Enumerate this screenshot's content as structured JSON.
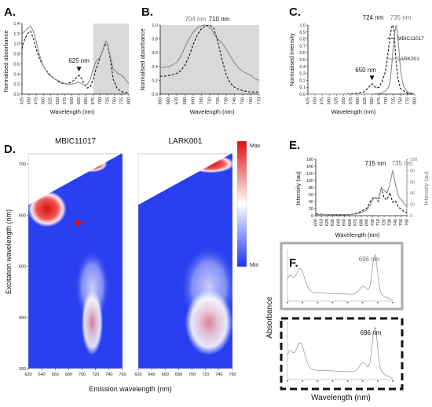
{
  "figure": {
    "panel_labels": [
      "A.",
      "B.",
      "C.",
      "D.",
      "E.",
      "F."
    ]
  },
  "chart_data": [
    {
      "panel": "A.",
      "type": "line",
      "xlabel": "Wavelength (nm)",
      "ylabel": "Normalised absorbance",
      "xlim": [
        425,
        800
      ],
      "ylim": [
        0.0,
        1.4
      ],
      "xticks": [
        425,
        450,
        475,
        500,
        525,
        550,
        575,
        600,
        625,
        650,
        675,
        700,
        725,
        750,
        775,
        800
      ],
      "yticks": [
        0.0,
        0.2,
        0.4,
        0.6,
        0.8,
        1.0,
        1.2,
        1.4
      ],
      "shaded_range": [
        675,
        800
      ],
      "annotations": [
        {
          "text": "625 nm",
          "x": 625
        }
      ],
      "series": [
        {
          "style": "dashed",
          "color": "#111111",
          "x": [
            425,
            435,
            445,
            455,
            465,
            475,
            485,
            500,
            520,
            540,
            560,
            580,
            600,
            615,
            625,
            635,
            645,
            655,
            665,
            675,
            685,
            695,
            705,
            715,
            720,
            725,
            735,
            745,
            760,
            780,
            800
          ],
          "y": [
            0.9,
            1.1,
            1.2,
            1.25,
            1.1,
            0.9,
            0.72,
            0.55,
            0.4,
            0.3,
            0.22,
            0.2,
            0.24,
            0.32,
            0.37,
            0.3,
            0.18,
            0.12,
            0.15,
            0.3,
            0.5,
            0.65,
            0.82,
            0.96,
            1.0,
            0.98,
            0.7,
            0.3,
            0.1,
            0.04,
            0.02
          ]
        },
        {
          "style": "solid",
          "color": "#8a8a8a",
          "x": [
            425,
            435,
            445,
            455,
            465,
            475,
            485,
            500,
            520,
            540,
            560,
            580,
            600,
            615,
            625,
            635,
            645,
            655,
            665,
            675,
            685,
            695,
            705,
            715,
            720,
            725,
            735,
            745,
            760,
            780,
            800
          ],
          "y": [
            1.2,
            1.25,
            1.3,
            1.35,
            1.25,
            1.05,
            0.8,
            0.55,
            0.38,
            0.3,
            0.25,
            0.2,
            0.2,
            0.22,
            0.24,
            0.2,
            0.18,
            0.2,
            0.3,
            0.5,
            0.65,
            0.7,
            0.8,
            1.0,
            1.05,
            1.0,
            0.75,
            0.5,
            0.42,
            0.35,
            0.2
          ]
        }
      ]
    },
    {
      "panel": "B.",
      "type": "line",
      "xlabel": "Wavelength (nm)",
      "ylabel": "Normalised absorbance",
      "xlim": [
        650,
        770
      ],
      "ylim": [
        0.0,
        1.0
      ],
      "xticks": [
        650,
        660,
        670,
        680,
        690,
        700,
        710,
        720,
        730,
        740,
        750,
        760,
        770
      ],
      "yticks": [
        0.0,
        0.2,
        0.4,
        0.6,
        0.8,
        1.0
      ],
      "shaded_range": [
        650,
        770
      ],
      "annotations": [
        {
          "text": "704 nm",
          "x": 704,
          "color": "#777777"
        },
        {
          "text": "710 nm",
          "x": 710,
          "color": "#111111"
        }
      ],
      "series": [
        {
          "style": "solid",
          "color": "#8a8a8a",
          "x": [
            650,
            655,
            660,
            665,
            670,
            675,
            680,
            685,
            690,
            695,
            700,
            704,
            708,
            712,
            716,
            720,
            725,
            730,
            735,
            740,
            745,
            750,
            755,
            760,
            765,
            770
          ],
          "y": [
            0.38,
            0.39,
            0.4,
            0.42,
            0.46,
            0.55,
            0.68,
            0.8,
            0.9,
            0.96,
            0.99,
            1.0,
            0.98,
            0.94,
            0.86,
            0.8,
            0.74,
            0.65,
            0.55,
            0.45,
            0.38,
            0.33,
            0.3,
            0.27,
            0.22,
            0.2
          ]
        },
        {
          "style": "dashed",
          "color": "#111111",
          "x": [
            650,
            655,
            660,
            665,
            670,
            675,
            680,
            685,
            690,
            695,
            700,
            705,
            710,
            715,
            720,
            725,
            730,
            735,
            740,
            745,
            750,
            755,
            760,
            765,
            770
          ],
          "y": [
            0.26,
            0.26,
            0.27,
            0.28,
            0.3,
            0.34,
            0.42,
            0.55,
            0.72,
            0.86,
            0.95,
            0.99,
            1.0,
            0.95,
            0.75,
            0.5,
            0.28,
            0.16,
            0.1,
            0.07,
            0.05,
            0.04,
            0.03,
            0.03,
            0.03
          ]
        }
      ]
    },
    {
      "panel": "C.",
      "type": "line",
      "xlabel": "Wavelength (nm)",
      "ylabel": "Normalised intensity",
      "xlim": [
        425,
        800
      ],
      "ylim": [
        0.0,
        1.0
      ],
      "xticks": [
        425,
        450,
        475,
        500,
        525,
        550,
        575,
        600,
        625,
        650,
        675,
        700,
        725,
        750,
        775,
        800
      ],
      "yticks": [
        0.0,
        0.1,
        0.2,
        0.3,
        0.4,
        0.5,
        0.6,
        0.7,
        0.8,
        0.9,
        1.0
      ],
      "annotations": [
        {
          "text": "650 nm",
          "x": 650
        },
        {
          "text": "724 nm",
          "x": 724,
          "color": "#111111"
        },
        {
          "text": "735 nm",
          "x": 735,
          "color": "#777777"
        }
      ],
      "legend": [
        "MBIC11017",
        "LARK001"
      ],
      "legend_position": "right",
      "series": [
        {
          "name": "MBIC11017",
          "style": "dashed",
          "color": "#111111",
          "x": [
            425,
            500,
            550,
            600,
            620,
            635,
            645,
            650,
            655,
            665,
            675,
            685,
            695,
            700,
            705,
            710,
            715,
            720,
            724,
            728,
            732,
            740,
            750,
            775,
            800
          ],
          "y": [
            0.0,
            0.0,
            0.0,
            0.01,
            0.03,
            0.08,
            0.13,
            0.15,
            0.13,
            0.09,
            0.1,
            0.18,
            0.3,
            0.4,
            0.55,
            0.72,
            0.88,
            0.98,
            1.0,
            0.9,
            0.6,
            0.25,
            0.08,
            0.01,
            0.0
          ]
        },
        {
          "name": "LARK001",
          "style": "solid",
          "color": "#8a8a8a",
          "x": [
            425,
            500,
            600,
            650,
            680,
            700,
            710,
            715,
            720,
            725,
            730,
            735,
            740,
            745,
            750,
            760,
            775,
            800
          ],
          "y": [
            0.0,
            0.0,
            0.0,
            0.0,
            0.01,
            0.05,
            0.12,
            0.25,
            0.45,
            0.7,
            0.9,
            1.0,
            0.88,
            0.62,
            0.35,
            0.12,
            0.03,
            0.0
          ]
        }
      ]
    },
    {
      "panel": "D.",
      "type": "heatmap",
      "xlabel": "Emission wavelength (nm)",
      "ylabel": "Excitation wavelength (nm)",
      "xlim": [
        620,
        760
      ],
      "ylim": [
        300,
        720
      ],
      "xticks": [
        620,
        640,
        660,
        680,
        700,
        720,
        740,
        760
      ],
      "yticks": [
        300,
        400,
        500,
        600,
        700
      ],
      "colorbar": {
        "max_label": "Max",
        "min_label": "Min",
        "colors": [
          "#1a33ee",
          "#ffffff",
          "#e01010"
        ]
      },
      "maps": [
        {
          "title": "MBIC11017",
          "spots": [
            {
              "x": 648,
              "y": 612,
              "intensity": 1.0,
              "type": "hot",
              "rx": 18,
              "ry": 22
            },
            {
              "x": 715,
              "y": 700,
              "intensity": 0.9,
              "type": "hot",
              "rx": 14,
              "ry": 10
            },
            {
              "x": 715,
              "y": 390,
              "intensity": 0.6,
              "type": "warm",
              "rx": 10,
              "ry": 40
            },
            {
              "x": 715,
              "y": 460,
              "intensity": 0.45,
              "type": "pale",
              "rx": 16,
              "ry": 45
            }
          ]
        },
        {
          "title": "LARK001",
          "spots": [
            {
              "x": 728,
              "y": 700,
              "intensity": 1.0,
              "type": "hot",
              "rx": 22,
              "ry": 11
            },
            {
              "x": 725,
              "y": 390,
              "intensity": 0.7,
              "type": "warm",
              "rx": 22,
              "ry": 40
            },
            {
              "x": 725,
              "y": 460,
              "intensity": 0.45,
              "type": "pale",
              "rx": 26,
              "ry": 50
            }
          ]
        }
      ]
    },
    {
      "panel": "E.",
      "type": "line",
      "xlabel": "Wavelength (nm)",
      "ylabel": "Intensity (au)",
      "ylabel_right": "Intensity (au)",
      "xlim": [
        600,
        760
      ],
      "ylim": [
        0,
        160
      ],
      "ylim_right": [
        0,
        100
      ],
      "xticks": [
        600,
        610,
        620,
        630,
        640,
        650,
        660,
        670,
        680,
        690,
        700,
        710,
        720,
        730,
        740,
        750,
        760
      ],
      "yticks": [
        0,
        20,
        40,
        60,
        80,
        100,
        120,
        140,
        160
      ],
      "yticks_right": [
        0,
        20,
        40,
        60,
        80,
        100
      ],
      "annotations": [
        {
          "text": "715 nm",
          "x": 715,
          "color": "#111111"
        },
        {
          "text": "735 nm",
          "x": 735,
          "color": "#777777"
        }
      ],
      "series": [
        {
          "style": "dashed",
          "color": "#111111",
          "axis": "left",
          "x": [
            600,
            620,
            640,
            660,
            670,
            680,
            690,
            695,
            700,
            705,
            710,
            715,
            720,
            725,
            730,
            735,
            740,
            745,
            750,
            755,
            760
          ],
          "y": [
            5,
            3,
            2,
            3,
            6,
            12,
            22,
            38,
            50,
            52,
            40,
            80,
            50,
            45,
            65,
            38,
            42,
            25,
            18,
            12,
            8
          ]
        },
        {
          "style": "solid",
          "color": "#8a8a8a",
          "axis": "right",
          "x": [
            600,
            620,
            640,
            660,
            670,
            680,
            690,
            695,
            700,
            705,
            710,
            715,
            720,
            725,
            730,
            735,
            740,
            745,
            750,
            755,
            760
          ],
          "y": [
            2,
            2,
            2,
            2,
            3,
            5,
            10,
            18,
            28,
            32,
            30,
            48,
            45,
            40,
            55,
            80,
            55,
            35,
            28,
            22,
            15
          ]
        }
      ]
    },
    {
      "panel": "F.",
      "type": "line",
      "xlabel": "Wavelength (nm)",
      "ylabel": "Absorbance",
      "annotations": [
        {
          "text": "696 nm",
          "x": 696
        }
      ],
      "insets": [
        {
          "border": "solid",
          "label": "696 nm",
          "label_color": "#777777"
        },
        {
          "border": "dashed",
          "label": "696 nm",
          "label_color": "#111111"
        }
      ]
    }
  ]
}
